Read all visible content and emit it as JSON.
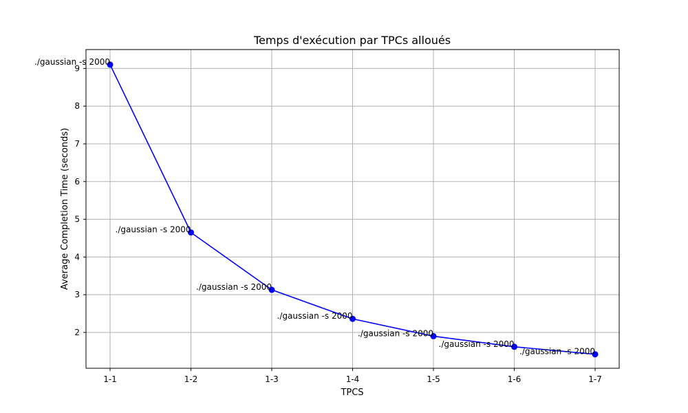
{
  "chart_data": {
    "type": "line",
    "title": "Temps d'exécution par TPCs alloués",
    "xlabel": "TPCS",
    "ylabel": "Average Completion Time (seconds)",
    "categories": [
      "1-1",
      "1-2",
      "1-3",
      "1-4",
      "1-5",
      "1-6",
      "1-7"
    ],
    "y_ticks": [
      2,
      3,
      4,
      5,
      6,
      7,
      8,
      9
    ],
    "ylim": [
      1.05,
      9.5
    ],
    "grid": true,
    "series": [
      {
        "color": "#0000ff",
        "values": [
          9.1,
          4.65,
          3.13,
          2.36,
          1.9,
          1.62,
          1.42
        ],
        "labels": [
          "./gaussian -s 2000",
          "./gaussian -s 2000",
          "./gaussian -s 2000",
          "./gaussian -s 2000",
          "./gaussian -s 2000",
          "./gaussian -s 2000",
          "./gaussian -s 2000"
        ]
      }
    ]
  }
}
